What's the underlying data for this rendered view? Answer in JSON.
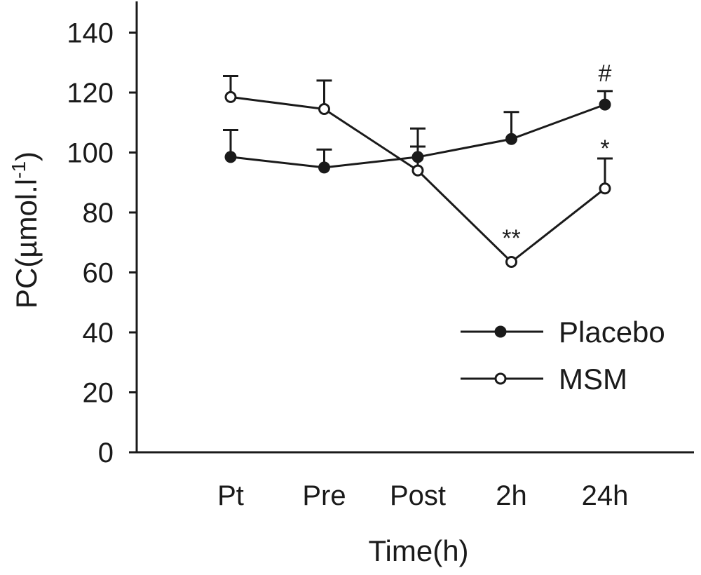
{
  "chart_data": {
    "type": "line",
    "xlabel": "Time(h)",
    "ylabel_main": "PC(µmol.l",
    "ylabel_sup": "-1",
    "ylabel_close": ")",
    "categories": [
      "Pt",
      "Pre",
      "Post",
      "2h",
      "24h"
    ],
    "ylim": [
      0,
      145
    ],
    "yticks": [
      0,
      20,
      40,
      60,
      80,
      100,
      120,
      140
    ],
    "ytick_labels": [
      "0",
      "20",
      "40",
      "60",
      "80",
      "100",
      "120",
      "140"
    ],
    "grid": false,
    "legend_placement": "bottom-right",
    "series": [
      {
        "name": "Placebo",
        "marker": "filled-circle",
        "values": [
          98.5,
          95,
          98.5,
          104.5,
          116
        ],
        "error_upper": [
          107.5,
          101,
          108,
          113.5,
          120.5
        ]
      },
      {
        "name": "MSM",
        "marker": "open-circle",
        "values": [
          118.5,
          114.5,
          94,
          63.5,
          88
        ],
        "error_upper": [
          125.5,
          124,
          102,
          63.5,
          98
        ]
      }
    ],
    "annotations": [
      {
        "text": "#",
        "category": "24h",
        "y": 127
      },
      {
        "text": "*",
        "category": "24h",
        "y": 102
      },
      {
        "text": "**",
        "category": "2h",
        "y": 72
      }
    ]
  },
  "colors": {
    "ink": "#1a1a1a",
    "background": "#ffffff"
  }
}
